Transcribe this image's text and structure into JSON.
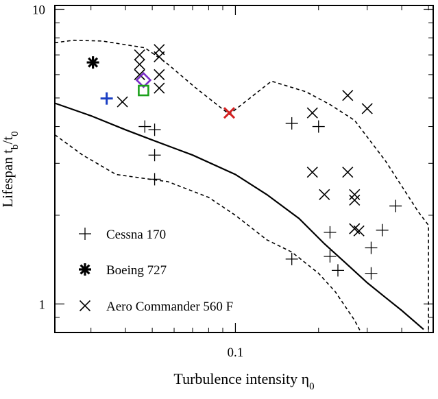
{
  "chart_data": {
    "type": "scatter",
    "title": "",
    "xlabel": "Turbulence intensity η₀",
    "ylabel": "Lifespan t_b/t₀",
    "xscale": "log",
    "yscale": "log",
    "xlim": [
      0.0222,
      0.52
    ],
    "ylim": [
      0.8,
      10.3
    ],
    "x_tick_labels": [
      {
        "value": 0.1,
        "label": "0.1"
      }
    ],
    "y_tick_labels": [
      {
        "value": 1,
        "label": "1"
      },
      {
        "value": 10,
        "label": "10"
      }
    ],
    "grid": false,
    "legend_position": "bottom-left",
    "series": [
      {
        "name": "Cessna 170",
        "marker": "plus",
        "color": "#000000",
        "points": [
          [
            0.047,
            4.0
          ],
          [
            0.051,
            3.9
          ],
          [
            0.051,
            3.2
          ],
          [
            0.051,
            2.65
          ],
          [
            0.16,
            4.1
          ],
          [
            0.2,
            4.0
          ],
          [
            0.22,
            1.75
          ],
          [
            0.22,
            1.45
          ],
          [
            0.235,
            1.3
          ],
          [
            0.16,
            1.42
          ],
          [
            0.31,
            1.55
          ],
          [
            0.31,
            1.27
          ],
          [
            0.34,
            1.78
          ],
          [
            0.38,
            2.15
          ]
        ]
      },
      {
        "name": "Boeing 727",
        "marker": "asterisk",
        "color": "#000000",
        "points": [
          [
            0.0305,
            6.6
          ]
        ]
      },
      {
        "name": "Aero Commander 560 F",
        "marker": "cross",
        "color": "#000000",
        "points": [
          [
            0.039,
            4.85
          ],
          [
            0.045,
            7.0
          ],
          [
            0.045,
            6.5
          ],
          [
            0.045,
            6.0
          ],
          [
            0.053,
            7.3
          ],
          [
            0.053,
            6.9
          ],
          [
            0.053,
            6.0
          ],
          [
            0.053,
            5.4
          ],
          [
            0.19,
            4.45
          ],
          [
            0.255,
            5.1
          ],
          [
            0.3,
            4.6
          ],
          [
            0.19,
            2.8
          ],
          [
            0.21,
            2.35
          ],
          [
            0.255,
            2.8
          ],
          [
            0.27,
            2.35
          ],
          [
            0.27,
            2.25
          ],
          [
            0.27,
            1.8
          ],
          [
            0.28,
            1.77
          ]
        ]
      },
      {
        "name": "",
        "marker": "plus",
        "color": "#1a3fc4",
        "points": [
          [
            0.0342,
            4.98
          ]
        ]
      },
      {
        "name": "",
        "marker": "diamond",
        "color": "#7a2cc8",
        "points": [
          [
            0.0465,
            5.75
          ]
        ]
      },
      {
        "name": "",
        "marker": "square",
        "color": "#1aa01a",
        "points": [
          [
            0.0465,
            5.3
          ]
        ]
      },
      {
        "name": "",
        "marker": "cross",
        "color": "#d42020",
        "points": [
          [
            0.095,
            4.45
          ]
        ]
      }
    ],
    "curves": [
      {
        "style": "solid",
        "points": [
          [
            0.0222,
            4.8
          ],
          [
            0.03,
            4.35
          ],
          [
            0.04,
            3.9
          ],
          [
            0.05,
            3.6
          ],
          [
            0.07,
            3.2
          ],
          [
            0.1,
            2.75
          ],
          [
            0.13,
            2.35
          ],
          [
            0.17,
            1.95
          ],
          [
            0.21,
            1.6
          ],
          [
            0.25,
            1.38
          ],
          [
            0.3,
            1.18
          ],
          [
            0.35,
            1.05
          ],
          [
            0.4,
            0.95
          ],
          [
            0.48,
            0.82
          ]
        ]
      },
      {
        "style": "dashed",
        "points": [
          [
            0.0222,
            7.7
          ],
          [
            0.026,
            7.85
          ],
          [
            0.033,
            7.8
          ],
          [
            0.047,
            7.4
          ],
          [
            0.056,
            6.6
          ],
          [
            0.072,
            5.4
          ],
          [
            0.095,
            4.4
          ],
          [
            0.135,
            5.7
          ],
          [
            0.18,
            5.25
          ],
          [
            0.22,
            4.75
          ],
          [
            0.27,
            4.2
          ],
          [
            0.35,
            3.05
          ],
          [
            0.46,
            2.05
          ],
          [
            0.5,
            1.85
          ],
          [
            0.5,
            0.8
          ]
        ]
      },
      {
        "style": "dashed",
        "points": [
          [
            0.0222,
            3.75
          ],
          [
            0.028,
            3.2
          ],
          [
            0.037,
            2.75
          ],
          [
            0.049,
            2.65
          ],
          [
            0.057,
            2.6
          ],
          [
            0.08,
            2.3
          ],
          [
            0.1,
            2.0
          ],
          [
            0.13,
            1.65
          ],
          [
            0.16,
            1.5
          ],
          [
            0.2,
            1.27
          ],
          [
            0.23,
            1.1
          ],
          [
            0.27,
            0.88
          ],
          [
            0.285,
            0.8
          ]
        ]
      }
    ]
  }
}
